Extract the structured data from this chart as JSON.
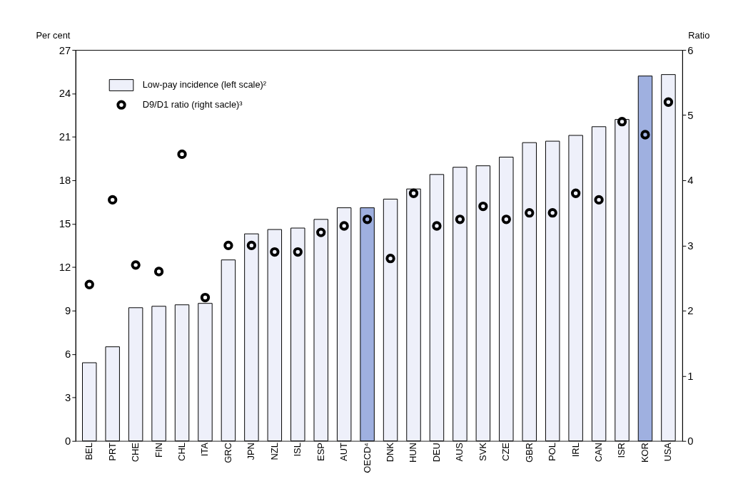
{
  "chart_data": {
    "type": "bar",
    "ylabel": "Per cent",
    "y2label": "Ratio",
    "categories": [
      "BEL",
      "PRT",
      "CHE",
      "FIN",
      "CHL",
      "ITA",
      "GRC",
      "JPN",
      "NZL",
      "ISL",
      "ESP",
      "AUT",
      "OECD⁴",
      "DNK",
      "HUN",
      "DEU",
      "AUS",
      "SVK",
      "CZE",
      "GBR",
      "POL",
      "IRL",
      "CAN",
      "ISR",
      "KOR",
      "USA"
    ],
    "series": [
      {
        "name": "Low-pay incidence (left scale)²",
        "color": "#eef0fa",
        "colors": [
          "#eef0fa",
          "#eef0fa",
          "#eef0fa",
          "#eef0fa",
          "#eef0fa",
          "#eef0fa",
          "#eef0fa",
          "#eef0fa",
          "#eef0fa",
          "#eef0fa",
          "#eef0fa",
          "#eef0fa",
          "#9fb0e0",
          "#eef0fa",
          "#eef0fa",
          "#eef0fa",
          "#eef0fa",
          "#eef0fa",
          "#eef0fa",
          "#eef0fa",
          "#eef0fa",
          "#eef0fa",
          "#eef0fa",
          "#eef0fa",
          "#9fb0e0",
          "#eef0fa"
        ],
        "values": [
          5.4,
          6.5,
          9.2,
          9.3,
          9.4,
          9.5,
          12.5,
          14.3,
          14.6,
          14.7,
          15.3,
          16.1,
          16.1,
          16.7,
          17.4,
          18.4,
          18.9,
          19.0,
          19.6,
          20.6,
          20.7,
          21.1,
          21.7,
          22.2,
          25.2,
          25.3
        ]
      },
      {
        "name": "D9/D1 ratio (right sacle)³",
        "type": "scatter",
        "axis": "y2",
        "color": "#000000",
        "marker": "circle",
        "values": [
          2.4,
          3.7,
          2.7,
          2.6,
          4.4,
          2.2,
          3.0,
          3.0,
          2.9,
          2.9,
          3.2,
          3.3,
          3.4,
          2.8,
          3.8,
          3.3,
          3.4,
          3.6,
          3.4,
          3.5,
          3.5,
          3.8,
          3.7,
          4.9,
          4.7,
          5.2
        ]
      }
    ],
    "ylim": [
      0,
      27
    ],
    "yticks": [
      0,
      3,
      6,
      9,
      12,
      15,
      18,
      21,
      24,
      27
    ],
    "y2lim": [
      0,
      6
    ],
    "y2ticks": [
      0,
      1,
      2,
      3,
      4,
      5,
      6
    ],
    "grid": false,
    "legend": "top left"
  }
}
